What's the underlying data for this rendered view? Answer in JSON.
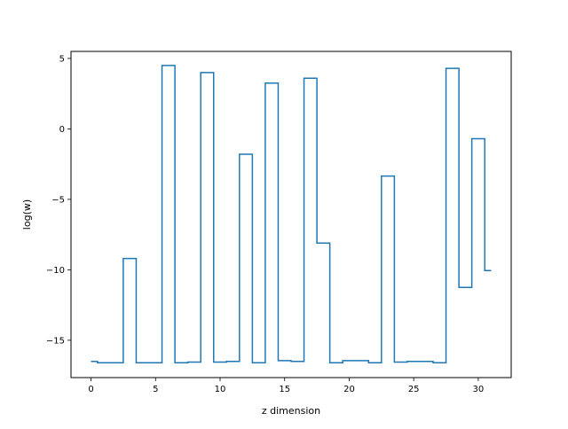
{
  "chart_data": {
    "type": "line",
    "drawstyle": "steps-mid",
    "title": "",
    "xlabel": "z dimension",
    "ylabel": "log(w)",
    "xlim": [
      -1.55,
      32.55
    ],
    "ylim": [
      -17.65,
      5.5
    ],
    "xticks": [
      0,
      5,
      10,
      15,
      20,
      25,
      30
    ],
    "yticks": [
      -15,
      -10,
      -5,
      0,
      5
    ],
    "xtick_labels": [
      "0",
      "5",
      "10",
      "15",
      "20",
      "25",
      "30"
    ],
    "ytick_labels": [
      "−15",
      "−10",
      "−5",
      "0",
      "5"
    ],
    "grid": false,
    "legend": "none",
    "line_color": "#1f77b4",
    "x": [
      0,
      1,
      2,
      3,
      4,
      5,
      6,
      7,
      8,
      9,
      10,
      11,
      12,
      13,
      14,
      15,
      16,
      17,
      18,
      19,
      20,
      21,
      22,
      23,
      24,
      25,
      26,
      27,
      28,
      29,
      30,
      31
    ],
    "series": [
      {
        "values": [
          -16.5,
          -16.6,
          -16.6,
          -9.2,
          -16.6,
          -16.6,
          4.5,
          -16.6,
          -16.55,
          4.0,
          -16.55,
          -16.5,
          -1.8,
          -16.6,
          3.25,
          -16.45,
          -16.5,
          3.6,
          -8.1,
          -16.6,
          -16.45,
          -16.45,
          -16.6,
          -3.35,
          -16.55,
          -16.5,
          -16.5,
          -16.6,
          4.3,
          -11.25,
          -0.7,
          -10.05
        ]
      }
    ]
  }
}
